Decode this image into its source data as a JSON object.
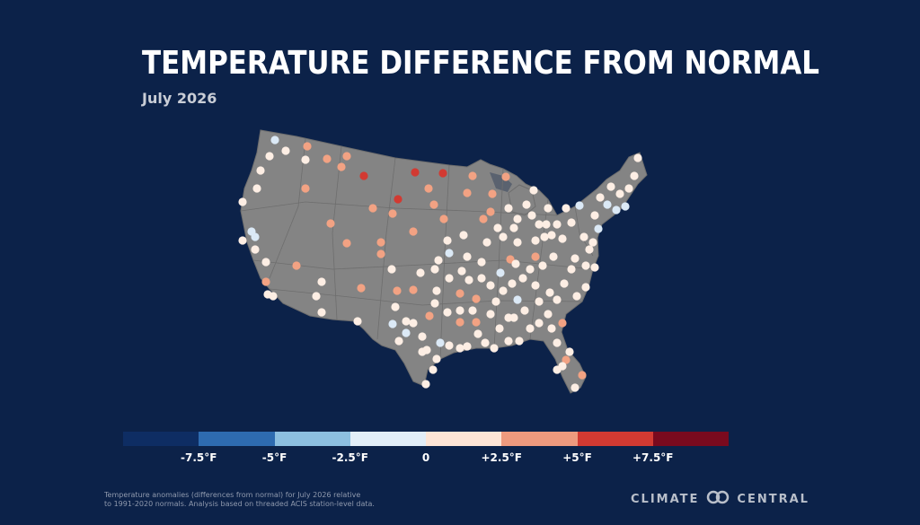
{
  "title": "TEMPERATURE DIFFERENCE FROM NORMAL",
  "subtitle": "July 2026",
  "legend": {
    "colors": [
      "#0e2d63",
      "#2e6bb0",
      "#8dbfe0",
      "#e2eef8",
      "#fde5d6",
      "#ee9a7e",
      "#d23a32",
      "#7a0a1e"
    ],
    "ticks": [
      "-7.5°F",
      "-5°F",
      "-2.5°F",
      "0",
      "+2.5°F",
      "+5°F",
      "+7.5°F"
    ],
    "tick_values": [
      -7.5,
      -5,
      -2.5,
      0,
      2.5,
      5,
      7.5
    ]
  },
  "footnote": {
    "line1": "Temperature anomalies (differences from normal) for July 2026 relative",
    "line2": "to 1991-2020 normals. Analysis based on threaded ACIS station-level data."
  },
  "brand": {
    "left": "CLIMATE",
    "right": "CENTRAL",
    "logo_icon": "linked-rings-icon"
  },
  "map": {
    "land_color": "#848484",
    "border_color": "#6e6e6e",
    "anomaly_colors": {
      "cool": "#dbe9f6",
      "near_normal": "#fdeee4",
      "warm": "#f2a283",
      "hot": "#d23a32"
    }
  }
}
